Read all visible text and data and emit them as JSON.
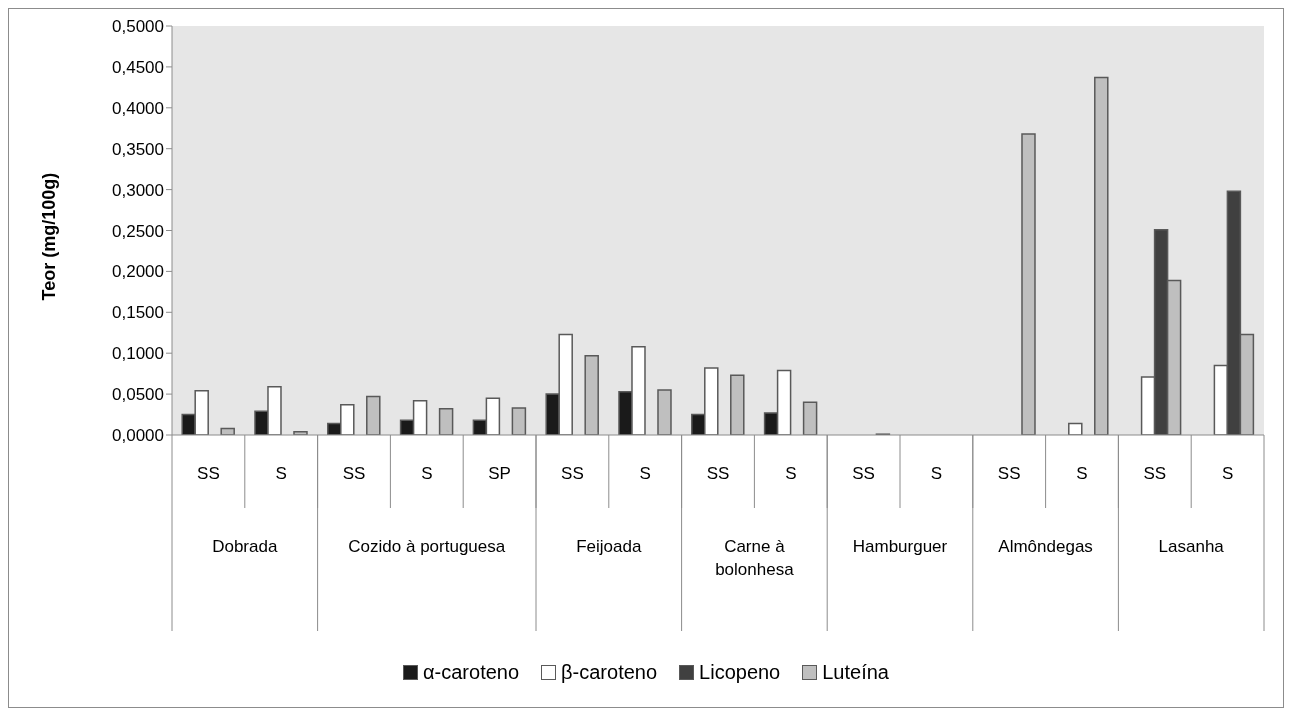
{
  "chart_data": {
    "type": "bar",
    "ylabel": "Teor (mg/100g)",
    "categories": [
      "SS",
      "S",
      "SS",
      "S",
      "SP",
      "SS",
      "S",
      "SS",
      "S",
      "SS",
      "S",
      "SS",
      "S",
      "SS",
      "S"
    ],
    "annotations": [
      "Dobrada",
      "Cozido à portuguesa",
      "Feijoada",
      "Carne à bolonhesa",
      "Hamburguer",
      "Almôndegas",
      "Lasanha"
    ],
    "series": [
      {
        "name": "α-caroteno",
        "color": "#1a1a1a",
        "values": [
          0.025,
          0.029,
          0.014,
          0.018,
          0.018,
          0.05,
          0.053,
          0.025,
          0.027,
          0,
          0,
          0,
          0,
          0,
          0
        ]
      },
      {
        "name": "β-caroteno",
        "color": "#ffffff",
        "values": [
          0.054,
          0.059,
          0.037,
          0.042,
          0.045,
          0.123,
          0.108,
          0.082,
          0.079,
          0,
          0,
          0,
          0.014,
          0.071,
          0.085
        ]
      },
      {
        "name": "Licopeno",
        "color": "#404040",
        "values": [
          0,
          0,
          0,
          0,
          0,
          0,
          0,
          0,
          0,
          0,
          0,
          0,
          0,
          0.251,
          0.298
        ]
      },
      {
        "name": "Luteína",
        "color": "#bfbfbf",
        "values": [
          0.008,
          0.004,
          0.047,
          0.032,
          0.033,
          0.097,
          0.055,
          0.073,
          0.04,
          0.001,
          0,
          0.368,
          0.437,
          0.189,
          0.123
        ]
      }
    ],
    "ylim": [
      0,
      0.5
    ],
    "yticks": [
      {
        "value": 0,
        "label": "0,0000"
      },
      {
        "value": 0.05,
        "label": "0,0500"
      },
      {
        "value": 0.1,
        "label": "0,1000"
      },
      {
        "value": 0.15,
        "label": "0,1500"
      },
      {
        "value": 0.2,
        "label": "0,2000"
      },
      {
        "value": 0.25,
        "label": "0,2500"
      },
      {
        "value": 0.3,
        "label": "0,3000"
      },
      {
        "value": 0.35,
        "label": "0,3500"
      },
      {
        "value": 0.4,
        "label": "0,4000"
      },
      {
        "value": 0.45,
        "label": "0,4500"
      },
      {
        "value": 0.5,
        "label": "0,5000"
      }
    ],
    "grid": false,
    "legend": "bottom"
  }
}
